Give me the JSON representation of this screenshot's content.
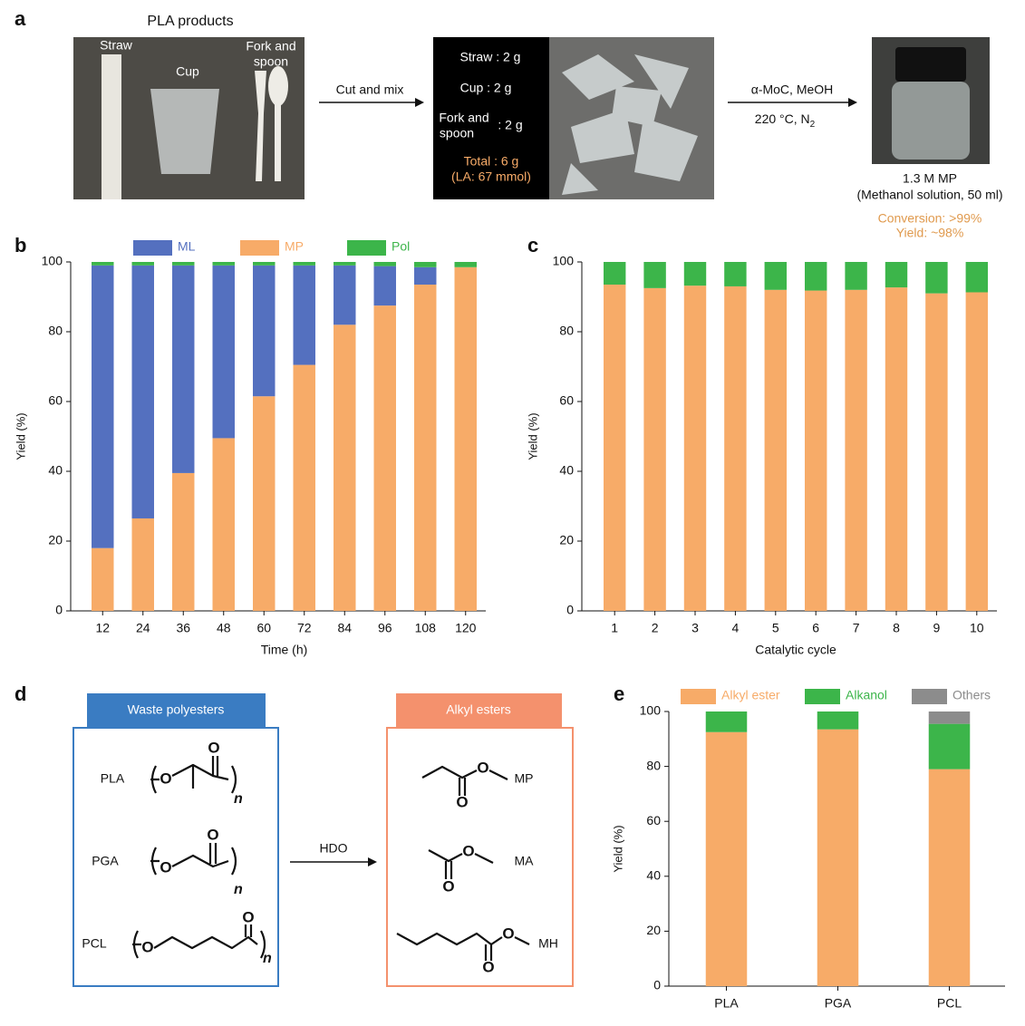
{
  "panel_letters": {
    "a": "a",
    "b": "b",
    "c": "c",
    "d": "d",
    "e": "e"
  },
  "panel_a": {
    "title": "PLA products",
    "straw": "Straw",
    "cup": "Cup",
    "fork_spoon": [
      "Fork and",
      "spoon"
    ],
    "step1": "Cut and mix",
    "mix": {
      "straw": "Straw : 2 g",
      "cup": "Cup : 2 g",
      "fork_spoon": [
        "Fork and",
        "spoon"
      ],
      "fork_amount": ": 2 g",
      "total": "Total : 6 g",
      "la": "(LA: 67 mmol)"
    },
    "step2": {
      "catalyst": "α-MoC, MeOH",
      "conditions": "220 °C, N",
      "subscript": "2"
    },
    "product": "1.3 M MP",
    "solution": "(Methanol solution, 50 ml)",
    "conversion": "Conversion: >99%",
    "yield": "Yield: ~98%"
  },
  "panel_d": {
    "header_left": "Waste polyesters",
    "header_right": "Alkyl esters",
    "polymers": [
      "PLA",
      "PGA",
      "PCL"
    ],
    "arrow_label": "HDO",
    "esters": [
      "MP",
      "MA",
      "MH"
    ],
    "atom": "O",
    "repeat": "n"
  },
  "chart_data": [
    {
      "type": "bar",
      "stacked": true,
      "y_label": "Yield (%)",
      "x_label": "Time (h)",
      "categories": [
        "12",
        "24",
        "36",
        "48",
        "60",
        "72",
        "84",
        "96",
        "108",
        "120"
      ],
      "series": [
        {
          "name": "MP",
          "color": "#f7ab68",
          "values": [
            18,
            26.5,
            39.5,
            49.5,
            61.5,
            70.5,
            82,
            87.5,
            93.5,
            98.5
          ]
        },
        {
          "name": "ML",
          "color": "#5470bf",
          "values": [
            81,
            72.5,
            59.5,
            49.5,
            37.5,
            28.5,
            17,
            11.3,
            5,
            0
          ]
        },
        {
          "name": "Pol",
          "color": "#3cb54a",
          "values": [
            1,
            1,
            1,
            1,
            1,
            1,
            1,
            1.2,
            1.5,
            1.5
          ]
        }
      ],
      "ylim": [
        0,
        100
      ],
      "yticks": [
        0,
        20,
        40,
        60,
        80,
        100
      ],
      "legend": "top"
    },
    {
      "type": "bar",
      "stacked": true,
      "y_label": "Yield (%)",
      "x_label": "Catalytic cycle",
      "categories": [
        "1",
        "2",
        "3",
        "4",
        "5",
        "6",
        "7",
        "8",
        "9",
        "10"
      ],
      "series": [
        {
          "color": "#f7ab68",
          "values": [
            93.5,
            92.5,
            93.2,
            93,
            92,
            91.8,
            92,
            92.7,
            91,
            91.3
          ]
        },
        {
          "color": "#3cb54a",
          "values": [
            6.5,
            7.5,
            6.8,
            7,
            8,
            8.2,
            8,
            7.3,
            9,
            8.7
          ]
        }
      ],
      "ylim": [
        0,
        100
      ],
      "yticks": [
        0,
        20,
        40,
        60,
        80,
        100
      ]
    },
    {
      "type": "bar",
      "stacked": true,
      "y_label": "Yield (%)",
      "categories": [
        "PLA",
        "PGA",
        "PCL"
      ],
      "series": [
        {
          "name": "Alkyl ester",
          "color": "#f7ab68",
          "values": [
            92.5,
            93.5,
            79
          ]
        },
        {
          "name": "Alkanol",
          "color": "#3cb54a",
          "values": [
            7.5,
            6.5,
            16.5
          ]
        },
        {
          "name": "Others",
          "color": "#8c8c8c",
          "values": [
            0,
            0,
            4.5
          ]
        }
      ],
      "ylim": [
        0,
        100
      ],
      "yticks": [
        0,
        20,
        40,
        60,
        80,
        100
      ],
      "legend": "top"
    }
  ]
}
